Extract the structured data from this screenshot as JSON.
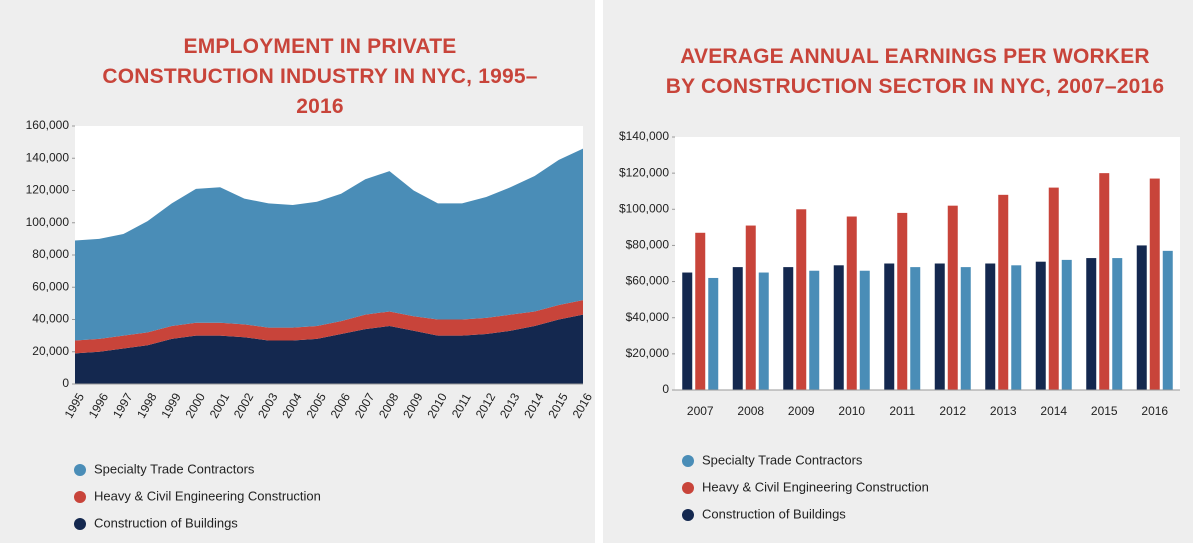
{
  "chart_data": [
    {
      "type": "area",
      "stacked": true,
      "title": "EMPLOYMENT IN PRIVATE CONSTRUCTION INDUSTRY IN NYC, 1995–2016",
      "categories": [
        "1995",
        "1996",
        "1997",
        "1998",
        "1999",
        "2000",
        "2001",
        "2002",
        "2003",
        "2004",
        "2005",
        "2006",
        "2007",
        "2008",
        "2009",
        "2010",
        "2011",
        "2012",
        "2013",
        "2014",
        "2015",
        "2016"
      ],
      "series": [
        {
          "name": "Specialty Trade Contractors",
          "color": "#4a8db7",
          "values": [
            62000,
            62000,
            63000,
            69000,
            76000,
            83000,
            84000,
            78000,
            77000,
            76000,
            77000,
            79000,
            84000,
            87000,
            78000,
            72000,
            72000,
            75000,
            79000,
            84000,
            90000,
            94000
          ]
        },
        {
          "name": "Heavy & Civil Engineering Construction",
          "color": "#c8443a",
          "values": [
            8000,
            8000,
            8000,
            8000,
            8000,
            8000,
            8000,
            8000,
            8000,
            8000,
            8000,
            8000,
            9000,
            9000,
            9000,
            10000,
            10000,
            10000,
            10000,
            9000,
            9000,
            9000
          ]
        },
        {
          "name": "Construction of Buildings",
          "color": "#14284f",
          "values": [
            19000,
            20000,
            22000,
            24000,
            28000,
            30000,
            30000,
            29000,
            27000,
            27000,
            28000,
            31000,
            34000,
            36000,
            33000,
            30000,
            30000,
            31000,
            33000,
            36000,
            40000,
            43000
          ]
        }
      ],
      "ylim": [
        0,
        160000
      ],
      "yticks": [
        0,
        {
          "value": 20000,
          "label": "20,000"
        },
        {
          "value": 40000,
          "label": "40,000"
        },
        {
          "value": 60000,
          "label": "60,000"
        },
        {
          "value": 80000,
          "label": "80,000"
        },
        {
          "value": 100000,
          "label": "100,000"
        },
        {
          "value": 120000,
          "label": "120,000"
        },
        {
          "value": 140000,
          "label": "140,000"
        },
        {
          "value": 160000,
          "label": "160,000"
        }
      ],
      "grid": false
    },
    {
      "type": "bar",
      "title": "AVERAGE ANNUAL EARNINGS PER WORKER BY CONSTRUCTION SECTOR IN NYC, 2007–2016",
      "categories": [
        "2007",
        "2008",
        "2009",
        "2010",
        "2011",
        "2012",
        "2013",
        "2014",
        "2015",
        "2016"
      ],
      "series": [
        {
          "name": "Specialty Trade Contractors",
          "color": "#4a8db7",
          "values": [
            62000,
            65000,
            66000,
            66000,
            68000,
            68000,
            69000,
            72000,
            73000,
            77000
          ]
        },
        {
          "name": "Heavy & Civil Engineering Construction",
          "color": "#c8443a",
          "values": [
            87000,
            91000,
            100000,
            96000,
            98000,
            102000,
            108000,
            112000,
            120000,
            117000
          ]
        },
        {
          "name": "Construction of Buildings",
          "color": "#14284f",
          "values": [
            65000,
            68000,
            68000,
            69000,
            70000,
            70000,
            70000,
            71000,
            73000,
            80000
          ]
        }
      ],
      "ylim": [
        0,
        140000
      ],
      "yticks": [
        0,
        {
          "value": 20000,
          "label": "$20,000"
        },
        {
          "value": 40000,
          "label": "$40,000"
        },
        {
          "value": 60000,
          "label": "$60,000"
        },
        {
          "value": 80000,
          "label": "$80,000"
        },
        {
          "value": 100000,
          "label": "$100,000"
        },
        {
          "value": 120000,
          "label": "$120,000"
        },
        {
          "value": 140000,
          "label": "$140,000"
        }
      ],
      "grid": false
    }
  ]
}
